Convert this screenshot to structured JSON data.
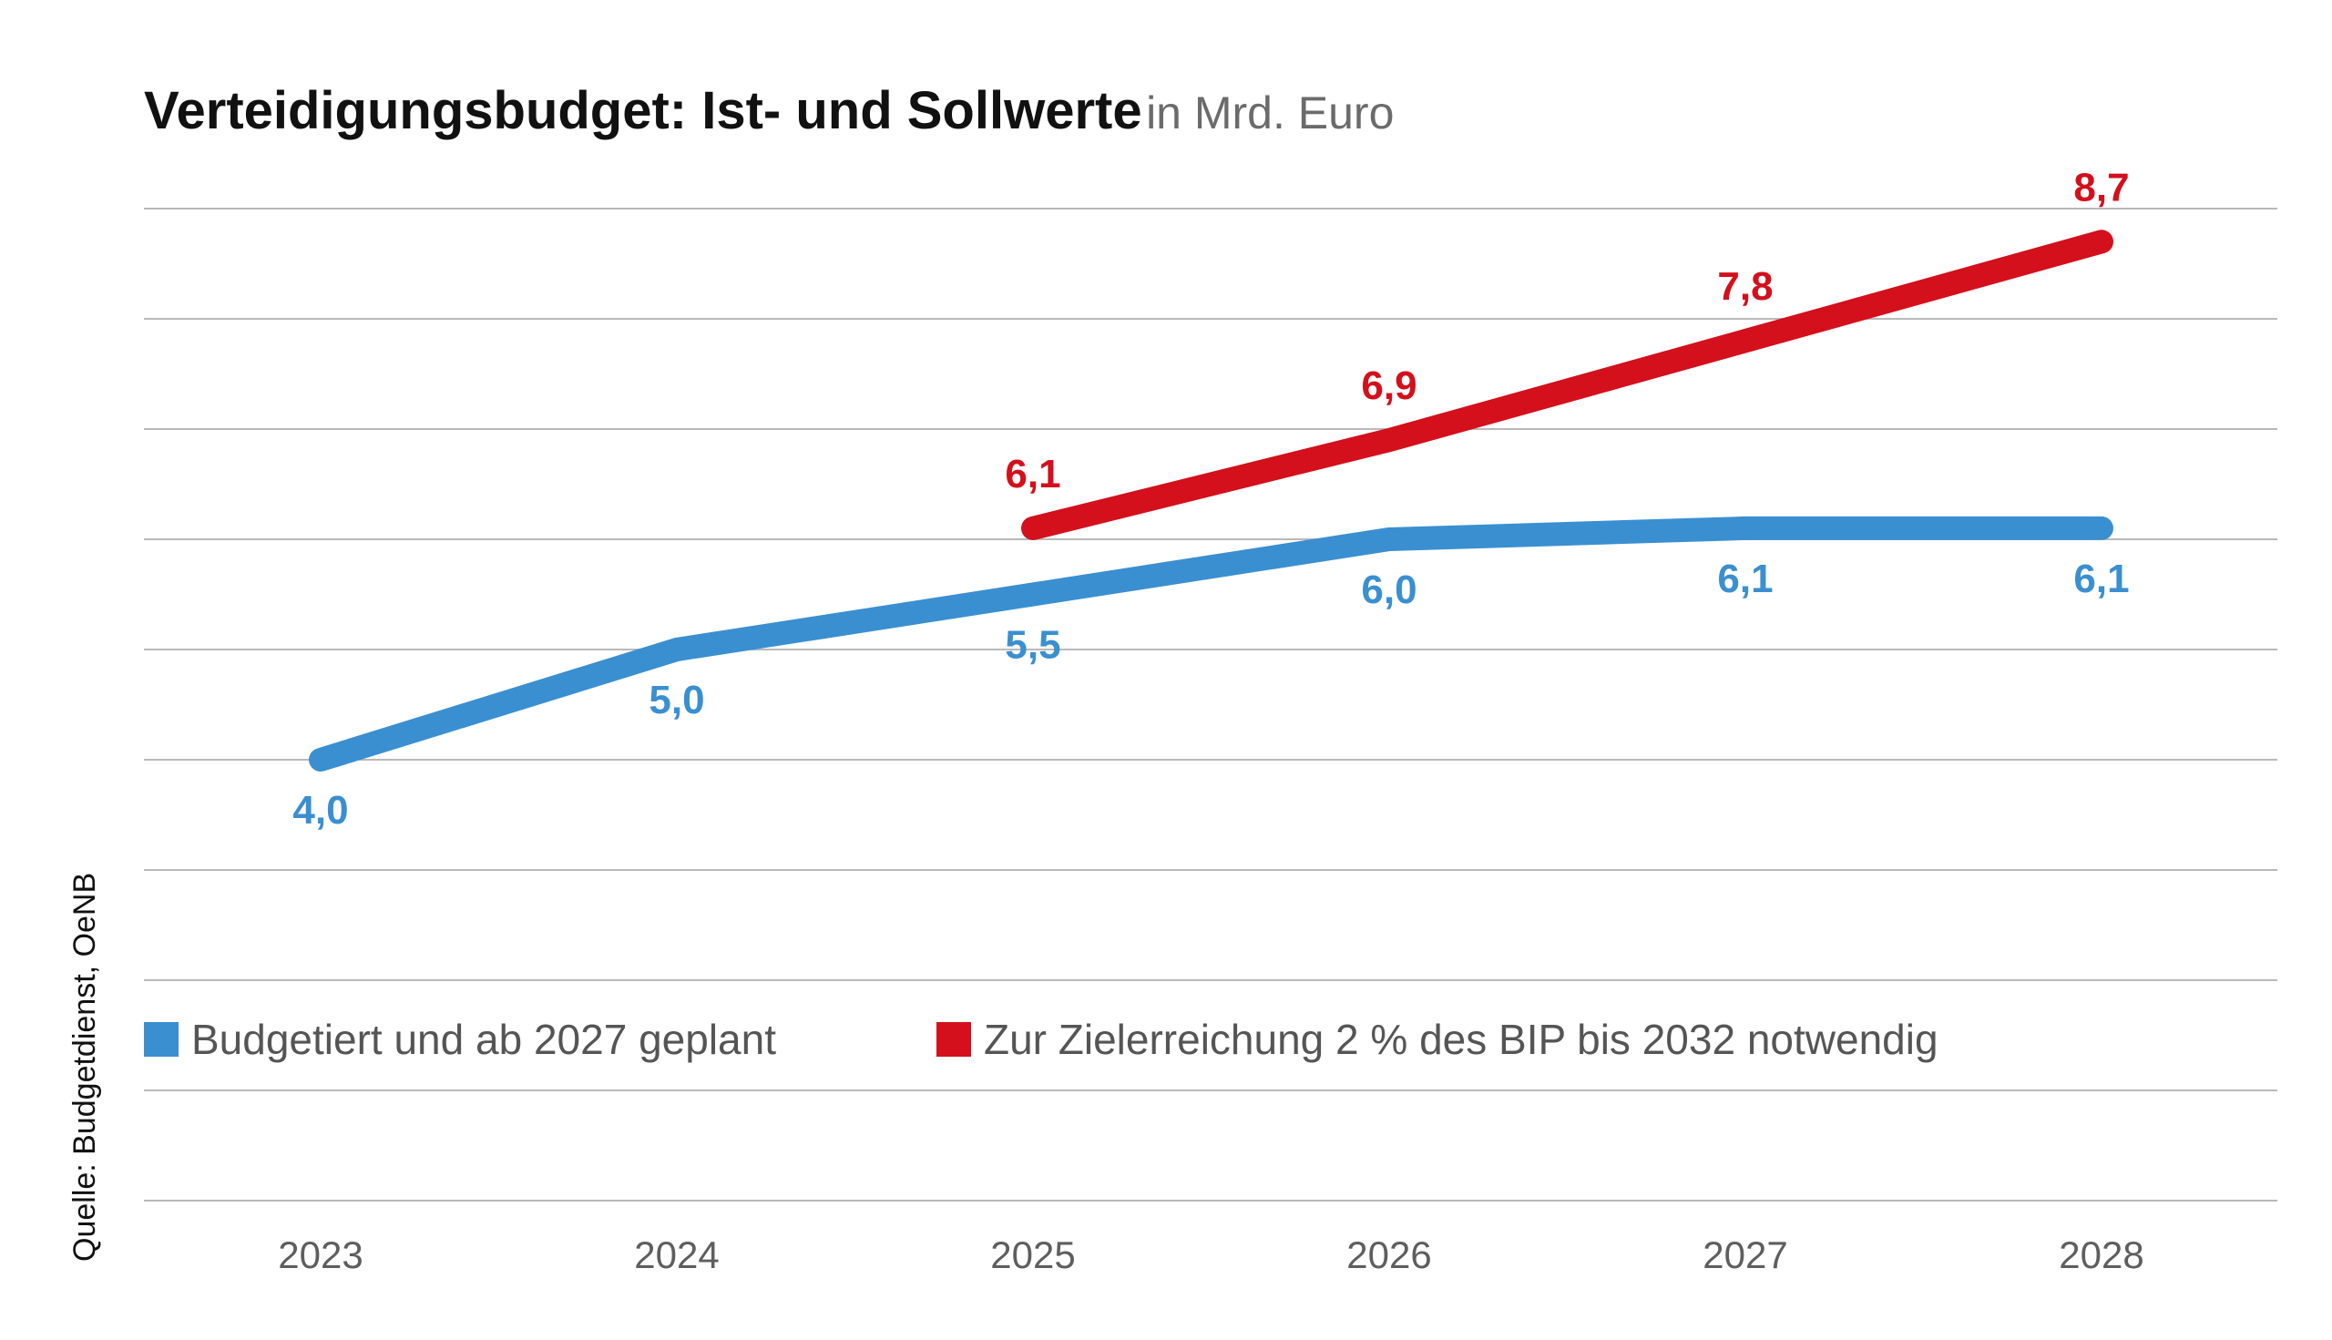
{
  "chart_data": {
    "type": "line",
    "title": "Verteidigungsbudget: Ist- und Sollwerte",
    "unit_label": "in Mrd. Euro",
    "source": "Quelle: Budgetdienst, OeNB",
    "categories": [
      "2023",
      "2024",
      "2025",
      "2026",
      "2027",
      "2028"
    ],
    "ylim": [
      0,
      9
    ],
    "grid": true,
    "legend_position": "bottom-left",
    "series": [
      {
        "name": "Budgetiert und ab 2027 geplant",
        "color": "#3a8fd1",
        "values": [
          4.0,
          5.0,
          5.5,
          6.0,
          6.1,
          6.1
        ],
        "labels": [
          "4,0",
          "5,0",
          "5,5",
          "6,0",
          "6,1",
          "6,1"
        ]
      },
      {
        "name": "Zur Zielerreichung 2 % des BIP bis 2032 notwendig",
        "color": "#d3101b",
        "values": [
          null,
          null,
          6.1,
          6.9,
          7.8,
          8.7
        ],
        "labels": [
          "",
          "",
          "6,1",
          "6,9",
          "7,8",
          "8,7"
        ]
      }
    ]
  }
}
